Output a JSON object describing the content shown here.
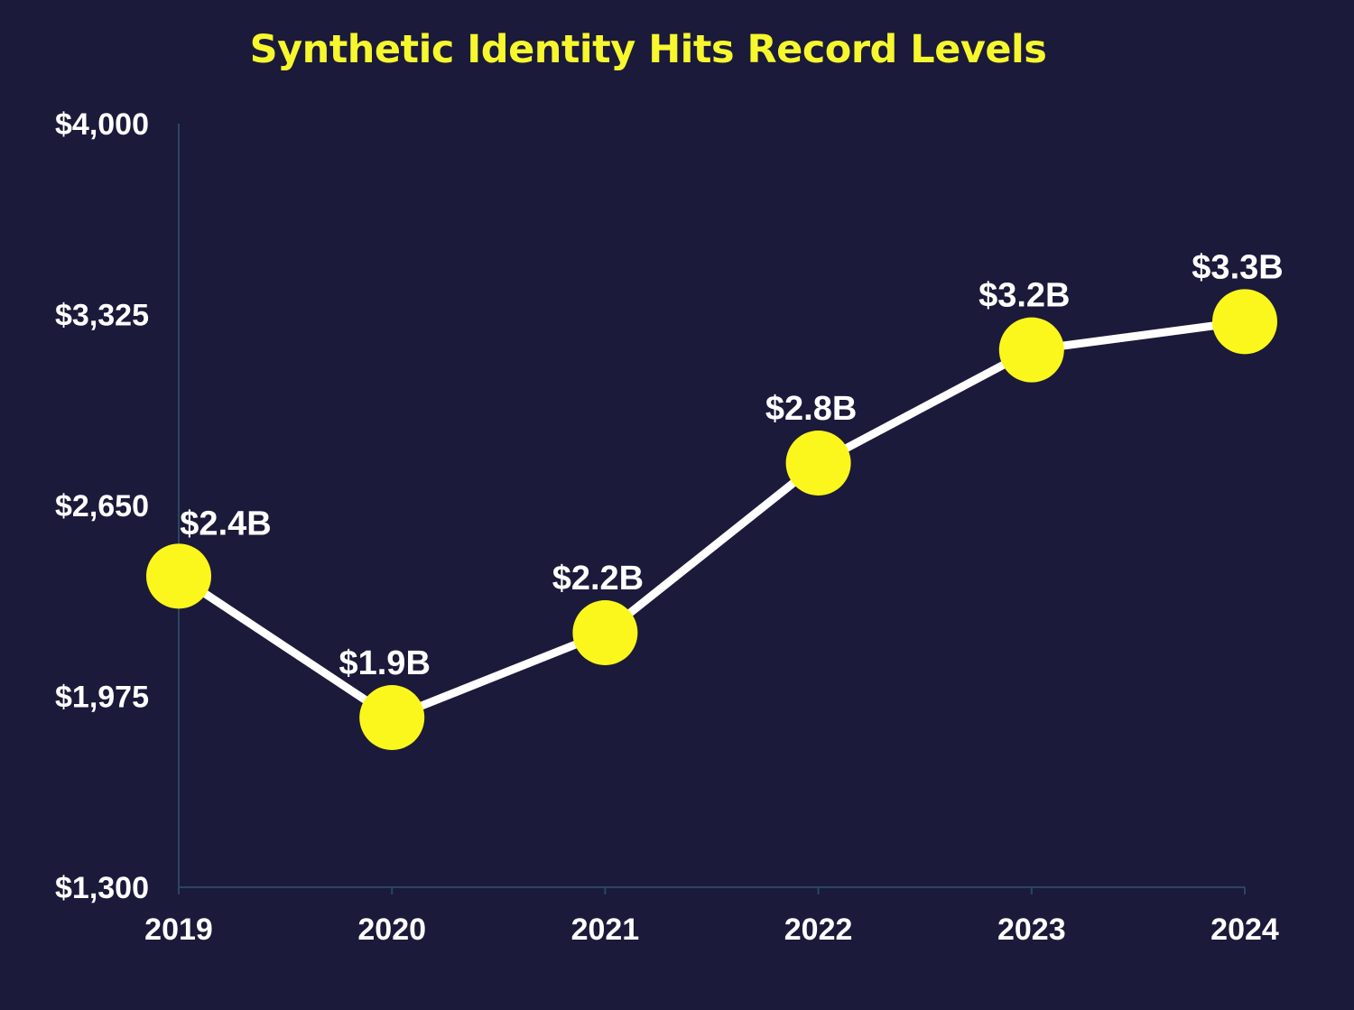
{
  "colors": {
    "background": "#1b1a3a",
    "title": "#f7f72e",
    "line": "#ffffff",
    "marker": "#fbf71c",
    "axis": "#2b4660",
    "text": "#ffffff"
  },
  "chart_data": {
    "type": "line",
    "title": "Synthetic Identity Hits Record Levels",
    "xlabel": "",
    "ylabel": "",
    "grid": false,
    "x": [
      "2019",
      "2020",
      "2021",
      "2022",
      "2023",
      "2024"
    ],
    "series": [
      {
        "values": [
          2400,
          1900,
          2200,
          2800,
          3200,
          3300
        ],
        "labels": [
          "$2.4B",
          "$1.9B",
          "$2.2B",
          "$2.8B",
          "$3.2B",
          "$3.3B"
        ]
      }
    ],
    "ylim": [
      1300,
      4000
    ],
    "yticks": [
      1300,
      1975,
      2650,
      3325,
      4000
    ],
    "ytick_labels": [
      "$1,300",
      "$1,975",
      "$2,650",
      "$3,325",
      "$4,000"
    ]
  }
}
